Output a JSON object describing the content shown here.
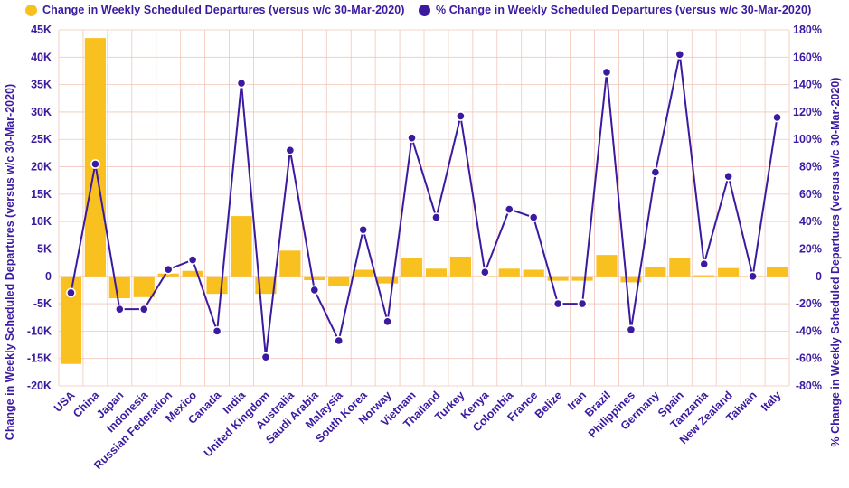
{
  "legend": {
    "bar_label": "Change in Weekly Scheduled Departures (versus w/c 30-Mar-2020)",
    "line_label": "% Change in Weekly Scheduled Departures (versus w/c 30-Mar-2020)"
  },
  "colors": {
    "bar": "#F9C11F",
    "line": "#3B1AA0",
    "grid": "#F2C6BB",
    "axis_text": "#3B1AA0"
  },
  "chart_data": {
    "type": "bar",
    "categories": [
      "USA",
      "China",
      "Japan",
      "Indonesia",
      "Russian Federation",
      "Mexico",
      "Canada",
      "India",
      "United Kingdom",
      "Australia",
      "Saudi Arabia",
      "Malaysia",
      "South Korea",
      "Norway",
      "Vietnam",
      "Thailand",
      "Turkey",
      "Kenya",
      "Colombia",
      "France",
      "Belize",
      "Iran",
      "Brazil",
      "Philippines",
      "Germany",
      "Spain",
      "Tanzania",
      "New Zealand",
      "Taiwan",
      "Italy"
    ],
    "series": [
      {
        "name": "Change in Weekly Scheduled Departures (versus w/c 30-Mar-2020)",
        "type": "bar",
        "axis": "left",
        "values": [
          -16000,
          43500,
          -4000,
          -3800,
          500,
          1000,
          -3200,
          11000,
          -3200,
          4700,
          -700,
          -1800,
          1200,
          -1300,
          3300,
          1400,
          3600,
          0,
          1400,
          1200,
          -800,
          -800,
          3900,
          -1100,
          1700,
          3300,
          200,
          1500,
          0,
          1700
        ]
      },
      {
        "name": "% Change in Weekly Scheduled Departures (versus w/c 30-Mar-2020)",
        "type": "line",
        "axis": "right",
        "values": [
          -12,
          82,
          -24,
          -24,
          5,
          12,
          -40,
          141,
          -59,
          92,
          -10,
          -47,
          34,
          -33,
          101,
          43,
          117,
          3,
          49,
          43,
          -20,
          -20,
          149,
          -39,
          76,
          162,
          9,
          73,
          0,
          116
        ]
      }
    ],
    "y_left": {
      "label": "Change in Weekly Scheduled Departures (versus w/c 30-Mar-2020)",
      "ylim": [
        -20000,
        45000
      ],
      "ticks": [
        {
          "value": 45000,
          "label": "45K"
        },
        {
          "value": 40000,
          "label": "40K"
        },
        {
          "value": 35000,
          "label": "35K"
        },
        {
          "value": 30000,
          "label": "30K"
        },
        {
          "value": 25000,
          "label": "25K"
        },
        {
          "value": 20000,
          "label": "20K"
        },
        {
          "value": 15000,
          "label": "15K"
        },
        {
          "value": 10000,
          "label": "10K"
        },
        {
          "value": 5000,
          "label": "5K"
        },
        {
          "value": 0,
          "label": "0"
        },
        {
          "value": -5000,
          "label": "-5K"
        },
        {
          "value": -10000,
          "label": "-10K"
        },
        {
          "value": -15000,
          "label": "-15K"
        },
        {
          "value": -20000,
          "label": "-20K"
        }
      ]
    },
    "y_right": {
      "label": "% Change in Weekly Scheduled Departures (versus w/c 30-Mar-2020)",
      "ylim": [
        -80,
        180
      ],
      "ticks": [
        {
          "value": 180,
          "label": "180%"
        },
        {
          "value": 160,
          "label": "160%"
        },
        {
          "value": 140,
          "label": "140%"
        },
        {
          "value": 120,
          "label": "120%"
        },
        {
          "value": 100,
          "label": "100%"
        },
        {
          "value": 80,
          "label": "80%"
        },
        {
          "value": 60,
          "label": "60%"
        },
        {
          "value": 40,
          "label": "40%"
        },
        {
          "value": 20,
          "label": "20%"
        },
        {
          "value": 0,
          "label": "0"
        },
        {
          "value": -20,
          "label": "-20%"
        },
        {
          "value": -40,
          "label": "-40%"
        },
        {
          "value": -60,
          "label": "-60%"
        },
        {
          "value": -80,
          "label": "-80%"
        }
      ]
    },
    "grid": true,
    "legend_position": "top"
  }
}
